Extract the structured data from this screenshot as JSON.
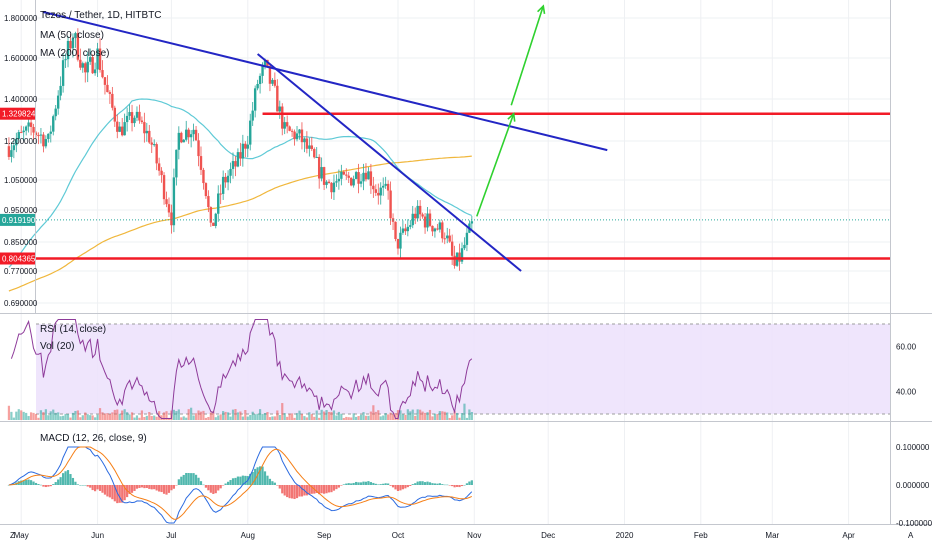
{
  "legend": {
    "symbol": "Tezos / Tether, 1D, HITBTC",
    "ma50": "MA (50, close)",
    "ma200": "MA (200, close)",
    "rsi": "RSI (14, close)",
    "vol": "Vol (20)",
    "macd": "MACD (12, 26, close, 9)"
  },
  "colors": {
    "up": "#26a69a",
    "down": "#ef5350",
    "ma50": "#5fcad6",
    "ma200": "#f0b73c",
    "trend": "#2326c4",
    "level": "#f21b27",
    "arrow": "#2fd12f",
    "rsi": "#8e3b9a",
    "rsi_band": "#ece0fb",
    "macd": "#2c6be0",
    "signal": "#f57f17"
  },
  "corner": {
    "left": "Z",
    "right": "A"
  },
  "chart_data": [
    {
      "type": "candlestick",
      "name": "Tezos / Tether",
      "price_ticks": [
        "1.800000",
        "1.600000",
        "1.400000",
        "1.200000",
        "1.050000",
        "0.950000",
        "0.850000",
        "0.770000",
        "0.690000"
      ],
      "price_tick_values": [
        1.8,
        1.6,
        1.4,
        1.2,
        1.05,
        0.95,
        0.85,
        0.77,
        0.69
      ],
      "last_price": "0.919190",
      "levels": [
        {
          "label": "1.329824",
          "value": 1.329824
        },
        {
          "label": "0.804365",
          "value": 0.804365
        }
      ],
      "x_ticks": [
        "May",
        "Jun",
        "Jul",
        "Aug",
        "Sep",
        "Oct",
        "Nov",
        "Dec",
        "2020",
        "Feb",
        "Mar",
        "Apr"
      ],
      "x_start": "2019-04-24",
      "x_end": "2020-04-30",
      "trendlines": [
        {
          "from": [
            "2019-05-10",
            1.83
          ],
          "to": [
            "2019-12-25",
            1.165
          ]
        },
        {
          "from": [
            "2019-08-05",
            1.62
          ],
          "to": [
            "2019-11-20",
            0.77
          ]
        }
      ],
      "projections": [
        {
          "from": [
            "2019-11-02",
            0.93
          ],
          "to": [
            "2019-11-17",
            1.33
          ]
        },
        {
          "from": [
            "2019-11-16",
            1.37
          ],
          "to": [
            "2019-11-29",
            1.86
          ]
        }
      ]
    },
    {
      "type": "line",
      "name": "RSI (14, close)",
      "ticks": [
        "60.00",
        "40.00"
      ],
      "tick_values": [
        60,
        40
      ],
      "band": [
        30,
        70
      ]
    },
    {
      "type": "histogram",
      "name": "MACD (12, 26, close, 9)",
      "ticks": [
        "0.100000",
        "0.000000",
        "-0.100000"
      ],
      "tick_values": [
        0.1,
        0,
        -0.1
      ]
    }
  ]
}
